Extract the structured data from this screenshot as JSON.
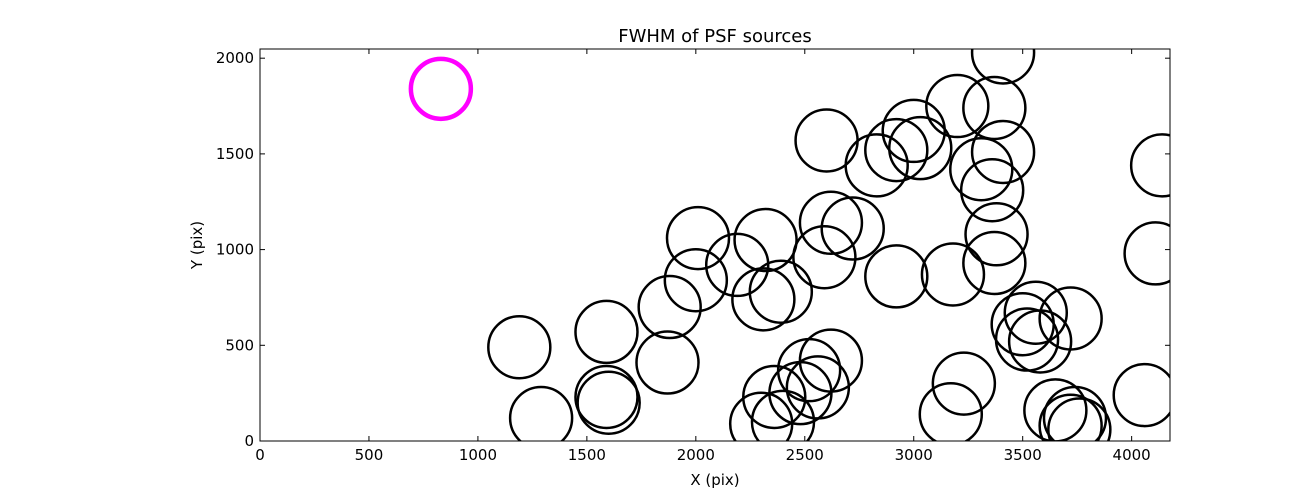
{
  "chart_data": {
    "type": "scatter",
    "title": "FWHM of PSF sources",
    "xlabel": "X (pix)",
    "ylabel": "Y (pix)",
    "xlim": [
      0,
      4176
    ],
    "ylim": [
      0,
      2048
    ],
    "xticks": [
      "0",
      "500",
      "1000",
      "1500",
      "2000",
      "2500",
      "3000",
      "3500",
      "4000"
    ],
    "yticks": [
      "0",
      "500",
      "1000",
      "1500",
      "2000"
    ],
    "grid": false,
    "reference_marker": {
      "x": 830,
      "y": 1840,
      "color": "#ff00ff",
      "label": ""
    },
    "marker_color": "#000000",
    "points": [
      {
        "x": 1190,
        "y": 490
      },
      {
        "x": 1290,
        "y": 120
      },
      {
        "x": 1590,
        "y": 570
      },
      {
        "x": 1590,
        "y": 230
      },
      {
        "x": 1600,
        "y": 200
      },
      {
        "x": 1880,
        "y": 700
      },
      {
        "x": 1870,
        "y": 410
      },
      {
        "x": 2010,
        "y": 1060
      },
      {
        "x": 2000,
        "y": 840
      },
      {
        "x": 2190,
        "y": 920
      },
      {
        "x": 2320,
        "y": 1050
      },
      {
        "x": 2310,
        "y": 740
      },
      {
        "x": 2390,
        "y": 780
      },
      {
        "x": 2300,
        "y": 90
      },
      {
        "x": 2360,
        "y": 230
      },
      {
        "x": 2400,
        "y": 100
      },
      {
        "x": 2480,
        "y": 250
      },
      {
        "x": 2520,
        "y": 370
      },
      {
        "x": 2560,
        "y": 280
      },
      {
        "x": 2620,
        "y": 420
      },
      {
        "x": 2600,
        "y": 1570
      },
      {
        "x": 2620,
        "y": 1140
      },
      {
        "x": 2590,
        "y": 960
      },
      {
        "x": 2720,
        "y": 1110
      },
      {
        "x": 2830,
        "y": 1440
      },
      {
        "x": 2920,
        "y": 1520
      },
      {
        "x": 3000,
        "y": 1620
      },
      {
        "x": 3030,
        "y": 1530
      },
      {
        "x": 2920,
        "y": 860
      },
      {
        "x": 3180,
        "y": 870
      },
      {
        "x": 3200,
        "y": 1750
      },
      {
        "x": 3370,
        "y": 1740
      },
      {
        "x": 3410,
        "y": 2030
      },
      {
        "x": 3310,
        "y": 1420
      },
      {
        "x": 3410,
        "y": 1510
      },
      {
        "x": 3360,
        "y": 1310
      },
      {
        "x": 3380,
        "y": 1080
      },
      {
        "x": 3370,
        "y": 930
      },
      {
        "x": 3500,
        "y": 610
      },
      {
        "x": 3560,
        "y": 670
      },
      {
        "x": 3520,
        "y": 530
      },
      {
        "x": 3580,
        "y": 520
      },
      {
        "x": 3720,
        "y": 640
      },
      {
        "x": 3230,
        "y": 300
      },
      {
        "x": 3170,
        "y": 140
      },
      {
        "x": 3650,
        "y": 160
      },
      {
        "x": 3740,
        "y": 120
      },
      {
        "x": 3720,
        "y": 80
      },
      {
        "x": 3760,
        "y": 60
      },
      {
        "x": 4060,
        "y": 240
      },
      {
        "x": 4110,
        "y": 980
      },
      {
        "x": 4140,
        "y": 1440
      }
    ]
  }
}
